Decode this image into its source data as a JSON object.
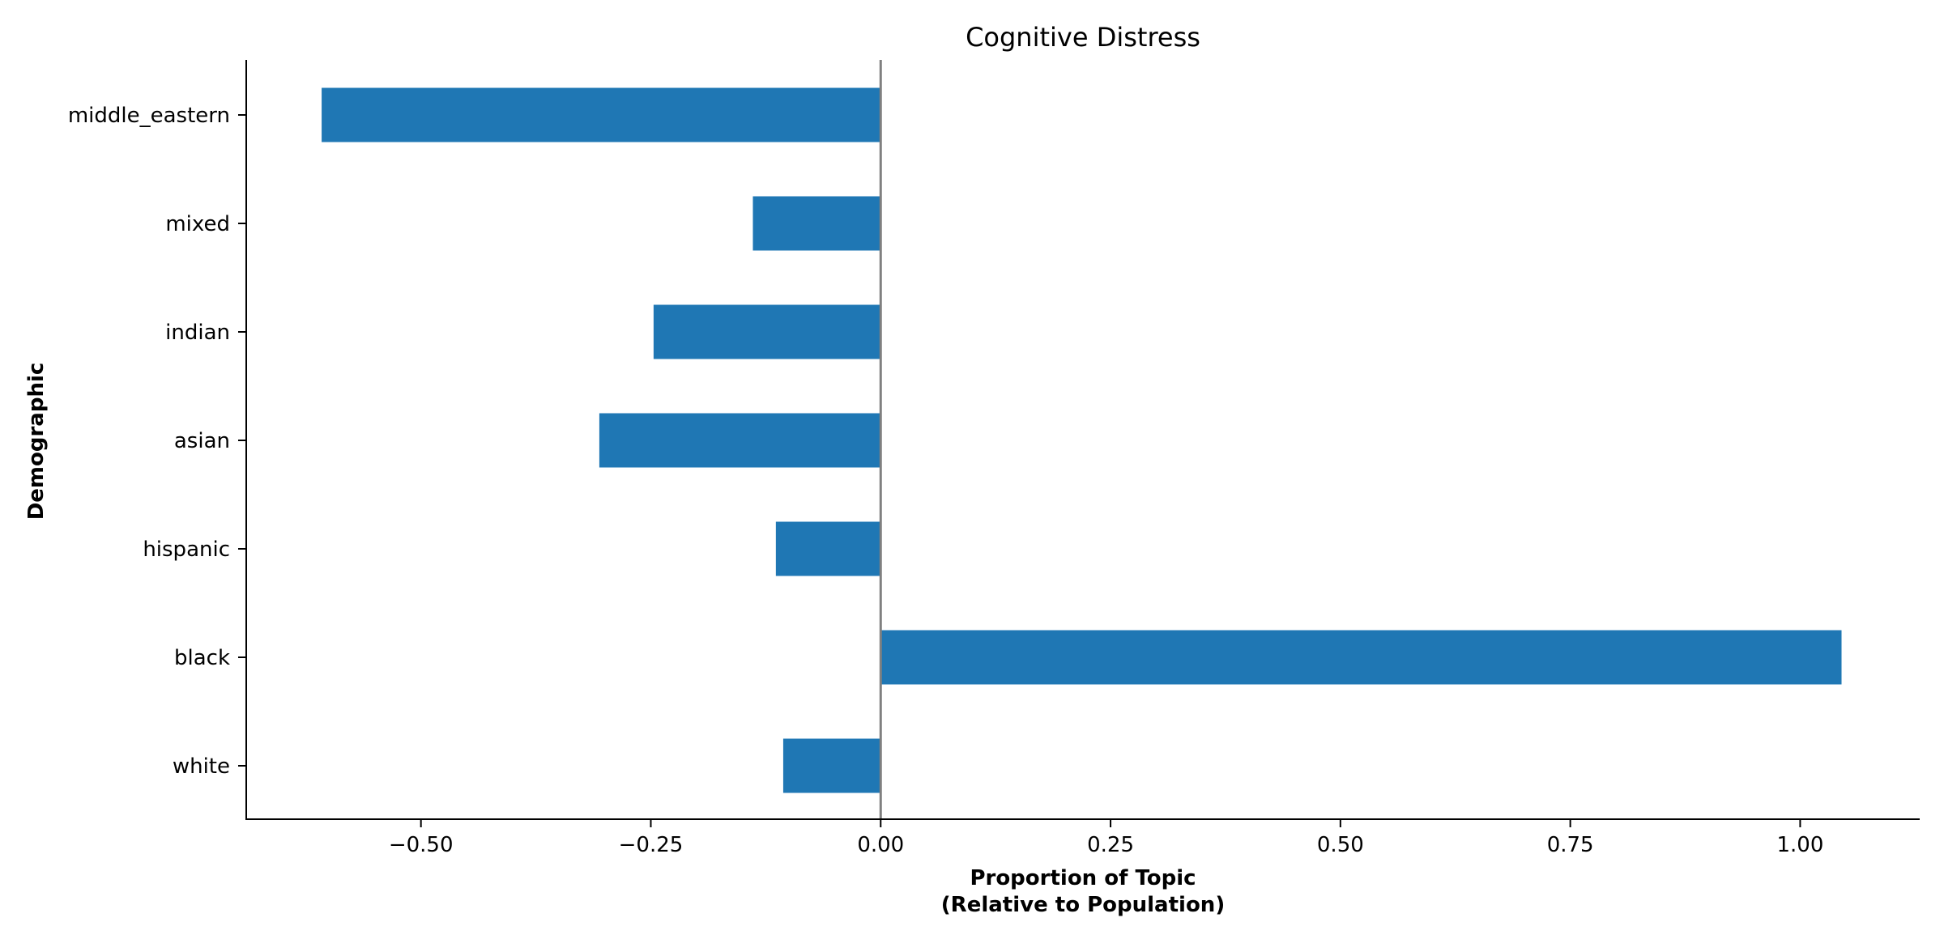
{
  "chart_data": {
    "type": "bar",
    "orientation": "horizontal",
    "title": "Cognitive Distress",
    "xlabel_line1": "Proportion of Topic",
    "xlabel_line2": "(Relative to Population)",
    "ylabel": "Demographic",
    "categories": [
      "middle_eastern",
      "mixed",
      "indian",
      "asian",
      "hispanic",
      "black",
      "white"
    ],
    "values": [
      -0.608,
      -0.139,
      -0.247,
      -0.306,
      -0.114,
      1.045,
      -0.106
    ],
    "xlim": [
      -0.69,
      1.13
    ],
    "xticks": [
      -0.5,
      -0.25,
      0.0,
      0.25,
      0.5,
      0.75,
      1.0
    ],
    "xtick_labels": [
      "−0.50",
      "−0.25",
      "0.00",
      "0.25",
      "0.50",
      "0.75",
      "1.00"
    ],
    "grid": false,
    "zero_line": true,
    "colors": {
      "bar": "#1f77b4",
      "zero_line": "#808080"
    }
  }
}
